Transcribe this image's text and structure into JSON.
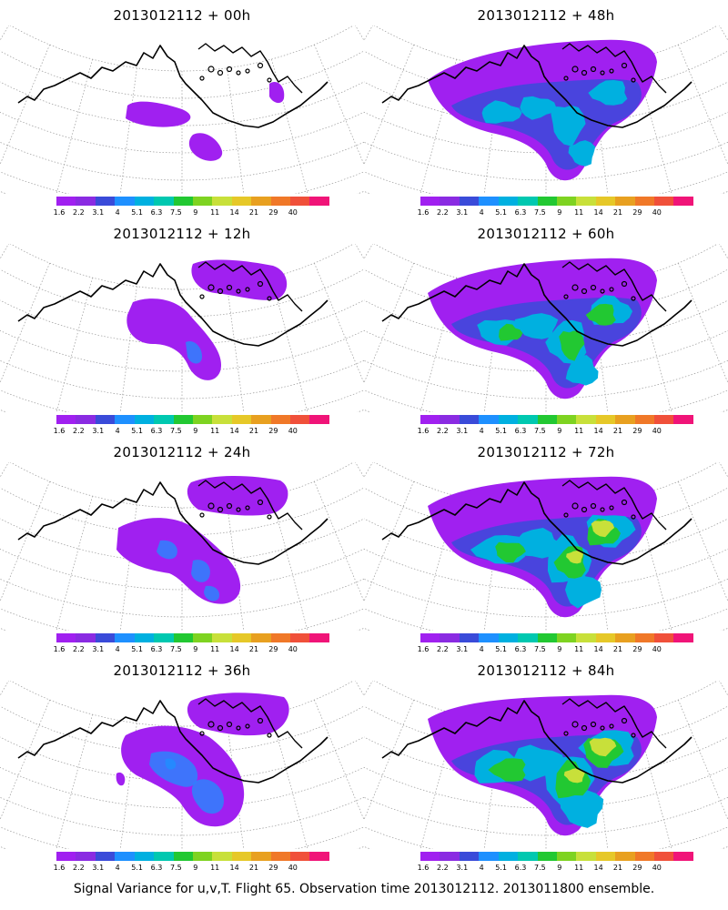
{
  "panels": [
    {
      "title": "2013012112 + 00h",
      "level": 0
    },
    {
      "title": "2013012112 + 48h",
      "level": 4
    },
    {
      "title": "2013012112 + 12h",
      "level": 1
    },
    {
      "title": "2013012112 + 60h",
      "level": 5
    },
    {
      "title": "2013012112 + 24h",
      "level": 2
    },
    {
      "title": "2013012112 + 72h",
      "level": 6
    },
    {
      "title": "2013012112 + 36h",
      "level": 3
    },
    {
      "title": "2013012112 + 84h",
      "level": 7
    }
  ],
  "colorbar": {
    "colors": [
      "#a020f0",
      "#8a2be2",
      "#3a4bd9",
      "#1e90ff",
      "#00b0e0",
      "#00c8b0",
      "#22c832",
      "#7ed321",
      "#c8e03a",
      "#e6c828",
      "#e8a020",
      "#f07828",
      "#f0503a",
      "#f01478"
    ],
    "labels": [
      "1.6",
      "2.2",
      "3.1",
      "4",
      "5.1",
      "6.3",
      "7.5",
      "9",
      "11",
      "14",
      "21",
      "29",
      "40"
    ]
  },
  "footer": "Signal Variance for u,v,T. Flight 65. Observation time 2013012112. 2013011800 ensemble."
}
